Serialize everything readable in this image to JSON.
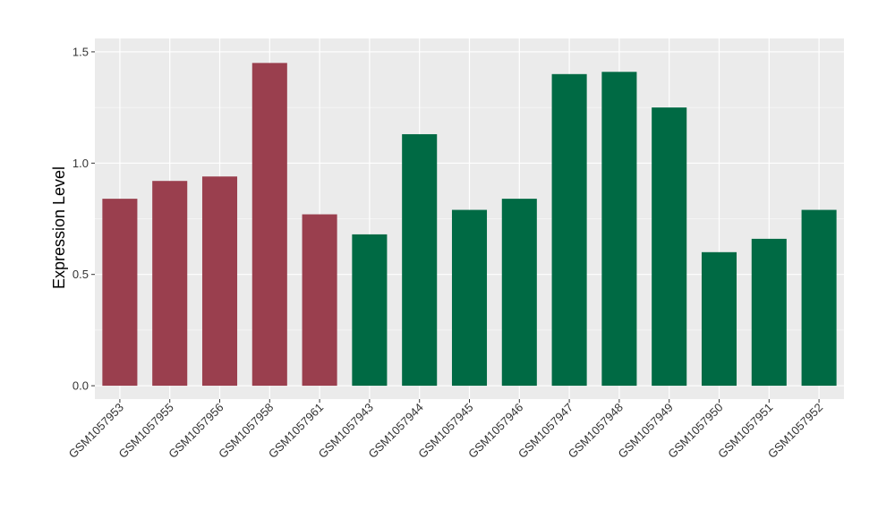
{
  "chart_data": {
    "type": "bar",
    "title": "",
    "xlabel": "",
    "ylabel": "Expression Level",
    "ylim": [
      -0.06,
      1.56
    ],
    "yticks": [
      0.0,
      0.5,
      1.0,
      1.5
    ],
    "ytick_labels": [
      "0.0",
      "0.5",
      "1.0",
      "1.5"
    ],
    "grid": true,
    "legend": "none",
    "categories": [
      "GSM1057953",
      "GSM1057955",
      "GSM1057956",
      "GSM1057958",
      "GSM1057961",
      "GSM1057943",
      "GSM1057944",
      "GSM1057945",
      "GSM1057946",
      "GSM1057947",
      "GSM1057948",
      "GSM1057949",
      "GSM1057950",
      "GSM1057951",
      "GSM1057952"
    ],
    "values": [
      0.84,
      0.92,
      0.94,
      1.45,
      0.77,
      0.68,
      1.13,
      0.79,
      0.84,
      1.4,
      1.41,
      1.25,
      0.6,
      0.66,
      0.79
    ],
    "bar_colors": [
      "#9a3f4e",
      "#9a3f4e",
      "#9a3f4e",
      "#9a3f4e",
      "#9a3f4e",
      "#006a44",
      "#006a44",
      "#006a44",
      "#006a44",
      "#006a44",
      "#006a44",
      "#006a44",
      "#006a44",
      "#006a44",
      "#006a44"
    ],
    "panel_background": "#ebebeb",
    "gridline_color": "#ffffff"
  }
}
